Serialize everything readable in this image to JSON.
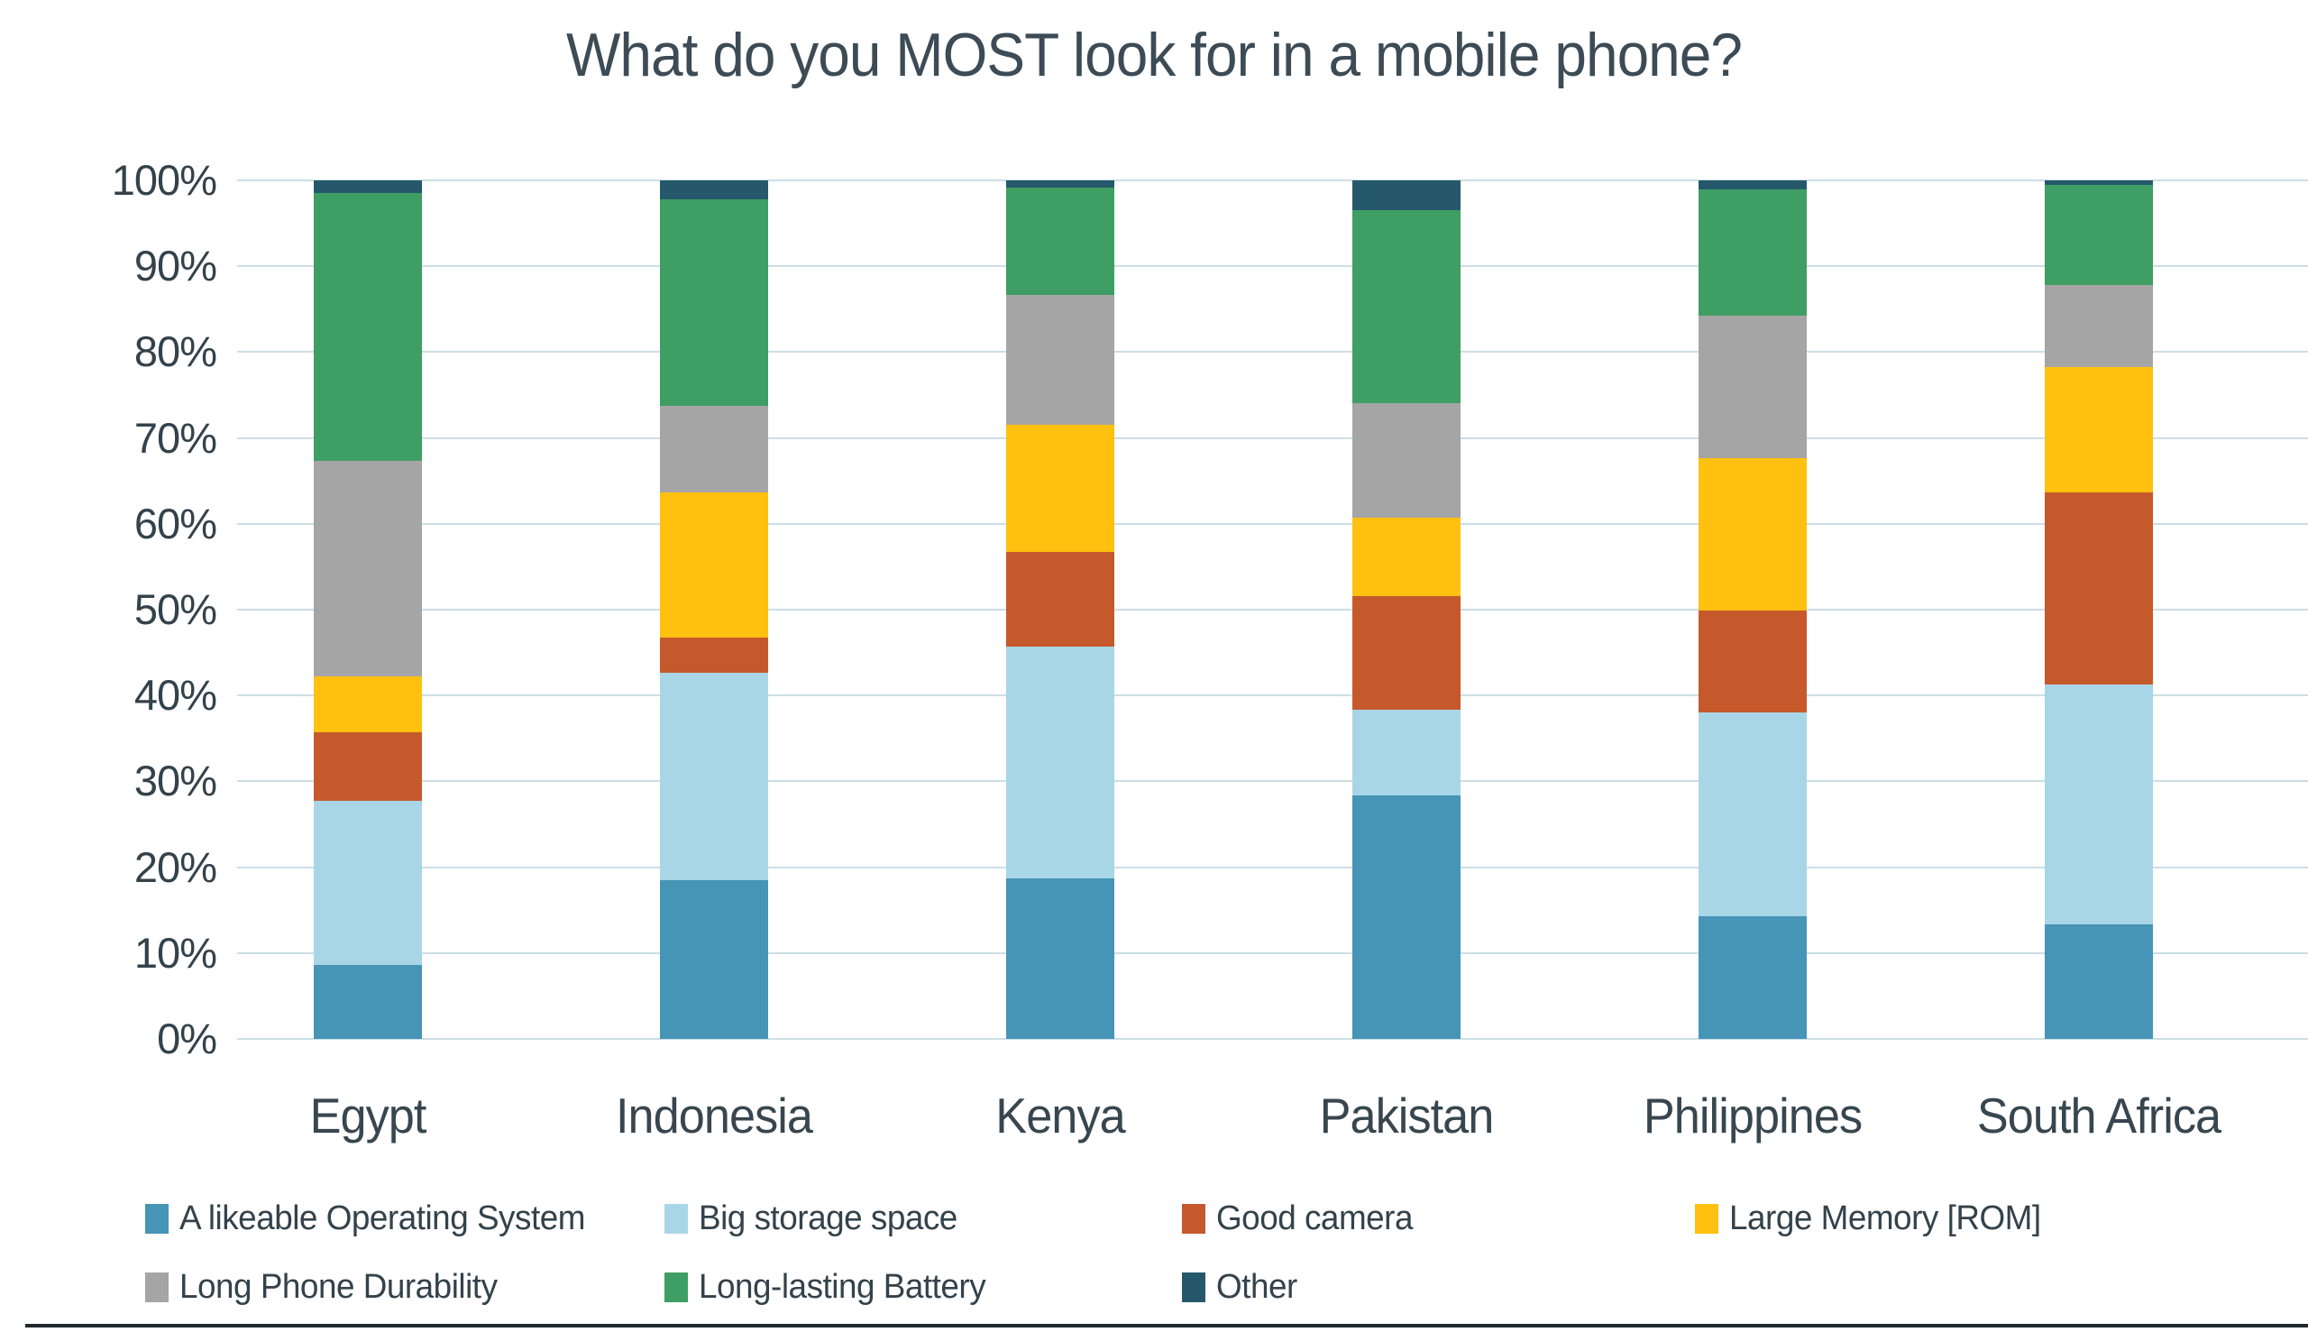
{
  "title": "What do you MOST look for in a mobile phone?",
  "chart_data": {
    "type": "bar",
    "stacked": true,
    "percent_stacked": true,
    "title": "What do you MOST look for in a mobile phone?",
    "xlabel": "",
    "ylabel": "",
    "ylim": [
      0,
      100
    ],
    "grid": true,
    "legend_position": "bottom",
    "y_ticks": [
      "0%",
      "10%",
      "20%",
      "30%",
      "40%",
      "50%",
      "60%",
      "70%",
      "80%",
      "90%",
      "100%"
    ],
    "categories": [
      "Egypt",
      "Indonesia",
      "Kenya",
      "Pakistan",
      "Philippines",
      "South Africa"
    ],
    "series": [
      {
        "name": "A likeable Operating System",
        "color": "#4694B6",
        "values": [
          8.6,
          18.5,
          18.7,
          28.4,
          14.3,
          13.3
        ]
      },
      {
        "name": "Big storage space",
        "color": "#A9D6E6",
        "values": [
          19.1,
          24.1,
          27.0,
          9.9,
          23.7,
          28.0
        ]
      },
      {
        "name": "Good camera",
        "color": "#C6592B",
        "values": [
          8.0,
          4.1,
          11.0,
          13.3,
          11.9,
          22.4
        ]
      },
      {
        "name": "Large Memory [ROM]",
        "color": "#FFC010",
        "values": [
          6.5,
          17.0,
          14.8,
          9.1,
          17.7,
          14.6
        ]
      },
      {
        "name": "Long Phone Durability",
        "color": "#A5A5A5",
        "values": [
          25.1,
          10.0,
          15.2,
          13.4,
          16.6,
          9.5
        ]
      },
      {
        "name": "Long-lasting Battery",
        "color": "#3E9E63",
        "values": [
          31.2,
          24.1,
          12.5,
          22.4,
          14.7,
          11.7
        ]
      },
      {
        "name": "Other",
        "color": "#26586C",
        "values": [
          1.5,
          2.2,
          0.8,
          3.5,
          1.1,
          0.5
        ]
      }
    ]
  },
  "legend": {
    "rows": [
      [
        0,
        1,
        2,
        3
      ],
      [
        4,
        5,
        6
      ]
    ]
  },
  "colors": {
    "background": "#FFFFFF",
    "text": "#37464F",
    "gridline": "#CCDEE6",
    "bottom_border": "#20292E"
  }
}
